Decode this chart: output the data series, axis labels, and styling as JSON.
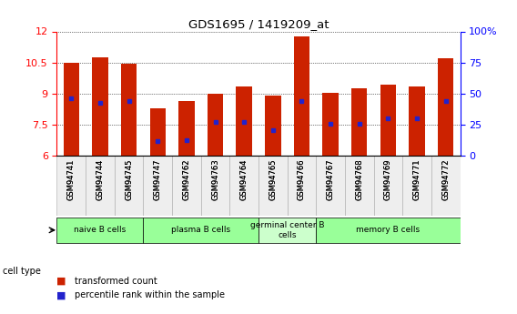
{
  "title": "GDS1695 / 1419209_at",
  "samples": [
    "GSM94741",
    "GSM94744",
    "GSM94745",
    "GSM94747",
    "GSM94762",
    "GSM94763",
    "GSM94764",
    "GSM94765",
    "GSM94766",
    "GSM94767",
    "GSM94768",
    "GSM94769",
    "GSM94771",
    "GSM94772"
  ],
  "transformed_count": [
    10.48,
    10.75,
    10.45,
    8.28,
    8.65,
    9.0,
    9.35,
    8.93,
    11.75,
    9.02,
    9.28,
    9.42,
    9.35,
    10.72
  ],
  "percentile_rank": [
    46,
    43,
    44,
    12,
    13,
    27,
    27,
    21,
    44,
    26,
    26,
    30,
    30,
    44
  ],
  "ylim": [
    6,
    12
  ],
  "yticks": [
    6,
    7.5,
    9,
    10.5,
    12
  ],
  "right_yticks": [
    0,
    25,
    50,
    75,
    100
  ],
  "bar_color": "#cc2200",
  "marker_color": "#2222cc",
  "background_color": "#ffffff",
  "cell_types": [
    {
      "label": "naive B cells",
      "start": 0,
      "end": 3,
      "color": "#99ff99"
    },
    {
      "label": "plasma B cells",
      "start": 3,
      "end": 7,
      "color": "#99ff99"
    },
    {
      "label": "germinal center B\ncells",
      "start": 7,
      "end": 9,
      "color": "#ccffcc"
    },
    {
      "label": "memory B cells",
      "start": 9,
      "end": 14,
      "color": "#99ff99"
    }
  ],
  "grid_color": "#888888",
  "bar_width": 0.55,
  "cell_type_label_fontsize": 7,
  "sample_fontsize": 6,
  "tick_fontsize": 8
}
